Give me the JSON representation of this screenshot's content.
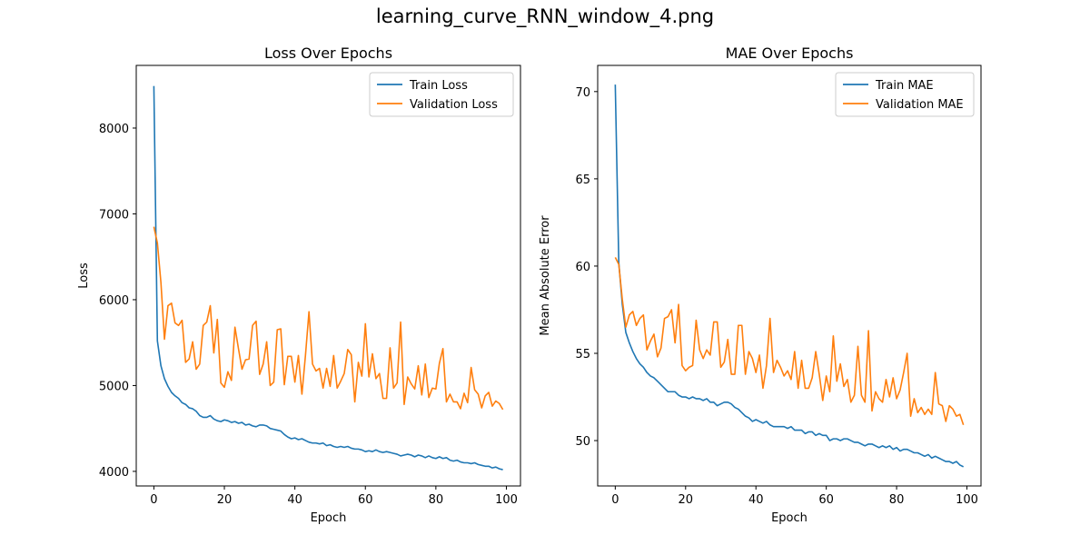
{
  "figure": {
    "title": "learning_curve_RNN_window_4.png"
  },
  "chart_data": [
    {
      "type": "line",
      "title": "Loss Over Epochs",
      "xlabel": "Epoch",
      "ylabel": "Loss",
      "xlim": [
        -5,
        104
      ],
      "ylim": [
        3830,
        8730
      ],
      "xticks": [
        0,
        20,
        40,
        60,
        80,
        100
      ],
      "yticks": [
        4000,
        5000,
        6000,
        7000,
        8000
      ],
      "legend": "top-right",
      "grid": false,
      "x": [
        0,
        1,
        2,
        3,
        4,
        5,
        6,
        7,
        8,
        9,
        10,
        11,
        12,
        13,
        14,
        15,
        16,
        17,
        18,
        19,
        20,
        21,
        22,
        23,
        24,
        25,
        26,
        27,
        28,
        29,
        30,
        31,
        32,
        33,
        34,
        35,
        36,
        37,
        38,
        39,
        40,
        41,
        42,
        43,
        44,
        45,
        46,
        47,
        48,
        49,
        50,
        51,
        52,
        53,
        54,
        55,
        56,
        57,
        58,
        59,
        60,
        61,
        62,
        63,
        64,
        65,
        66,
        67,
        68,
        69,
        70,
        71,
        72,
        73,
        74,
        75,
        76,
        77,
        78,
        79,
        80,
        81,
        82,
        83,
        84,
        85,
        86,
        87,
        88,
        89,
        90,
        91,
        92,
        93,
        94,
        95,
        96,
        97,
        98,
        99
      ],
      "series": [
        {
          "name": "Train Loss",
          "color": "#1f77b4",
          "values": [
            8490,
            5520,
            5230,
            5080,
            4990,
            4920,
            4880,
            4850,
            4800,
            4780,
            4740,
            4730,
            4700,
            4650,
            4630,
            4630,
            4650,
            4610,
            4590,
            4580,
            4600,
            4590,
            4570,
            4580,
            4560,
            4570,
            4540,
            4550,
            4530,
            4520,
            4540,
            4540,
            4530,
            4500,
            4490,
            4480,
            4470,
            4430,
            4400,
            4380,
            4390,
            4370,
            4380,
            4360,
            4340,
            4330,
            4330,
            4320,
            4330,
            4300,
            4310,
            4290,
            4280,
            4290,
            4280,
            4290,
            4270,
            4260,
            4260,
            4250,
            4230,
            4240,
            4230,
            4250,
            4230,
            4220,
            4230,
            4220,
            4210,
            4200,
            4180,
            4190,
            4200,
            4190,
            4170,
            4190,
            4180,
            4160,
            4180,
            4160,
            4150,
            4170,
            4150,
            4160,
            4130,
            4120,
            4130,
            4110,
            4100,
            4100,
            4090,
            4100,
            4080,
            4070,
            4060,
            4060,
            4040,
            4050,
            4030,
            4020
          ]
        },
        {
          "name": "Validation Loss",
          "color": "#ff7f0e",
          "values": [
            6850,
            6660,
            6200,
            5540,
            5930,
            5960,
            5730,
            5700,
            5760,
            5270,
            5310,
            5510,
            5190,
            5250,
            5700,
            5740,
            5930,
            5380,
            5770,
            5030,
            4980,
            5160,
            5060,
            5680,
            5430,
            5190,
            5300,
            5310,
            5700,
            5750,
            5130,
            5250,
            5510,
            5000,
            5040,
            5650,
            5660,
            5010,
            5340,
            5340,
            5040,
            5350,
            4900,
            5350,
            5860,
            5250,
            5170,
            5200,
            4970,
            5200,
            4990,
            5350,
            4970,
            5050,
            5140,
            5420,
            5360,
            4810,
            5270,
            5110,
            5720,
            5100,
            5370,
            5080,
            5140,
            4850,
            4850,
            5440,
            4970,
            5030,
            5740,
            4780,
            5100,
            5020,
            4960,
            5230,
            4890,
            5250,
            4860,
            4970,
            4960,
            5260,
            5430,
            4810,
            4900,
            4810,
            4810,
            4730,
            4910,
            4800,
            5210,
            4950,
            4900,
            4740,
            4880,
            4920,
            4760,
            4820,
            4790,
            4720
          ]
        }
      ]
    },
    {
      "type": "line",
      "title": "MAE Over Epochs",
      "xlabel": "Epoch",
      "ylabel": "Mean Absolute Error",
      "xlim": [
        -5,
        104
      ],
      "ylim": [
        47.4,
        71.5
      ],
      "xticks": [
        0,
        20,
        40,
        60,
        80,
        100
      ],
      "yticks": [
        50,
        55,
        60,
        65,
        70
      ],
      "legend": "top-right",
      "grid": false,
      "x": [
        0,
        1,
        2,
        3,
        4,
        5,
        6,
        7,
        8,
        9,
        10,
        11,
        12,
        13,
        14,
        15,
        16,
        17,
        18,
        19,
        20,
        21,
        22,
        23,
        24,
        25,
        26,
        27,
        28,
        29,
        30,
        31,
        32,
        33,
        34,
        35,
        36,
        37,
        38,
        39,
        40,
        41,
        42,
        43,
        44,
        45,
        46,
        47,
        48,
        49,
        50,
        51,
        52,
        53,
        54,
        55,
        56,
        57,
        58,
        59,
        60,
        61,
        62,
        63,
        64,
        65,
        66,
        67,
        68,
        69,
        70,
        71,
        72,
        73,
        74,
        75,
        76,
        77,
        78,
        79,
        80,
        81,
        82,
        83,
        84,
        85,
        86,
        87,
        88,
        89,
        90,
        91,
        92,
        93,
        94,
        95,
        96,
        97,
        98,
        99
      ],
      "series": [
        {
          "name": "Train MAE",
          "color": "#1f77b4",
          "values": [
            70.4,
            60.2,
            57.8,
            56.2,
            55.6,
            55.1,
            54.7,
            54.4,
            54.2,
            53.9,
            53.7,
            53.6,
            53.4,
            53.2,
            53.0,
            52.8,
            52.8,
            52.8,
            52.6,
            52.5,
            52.5,
            52.4,
            52.5,
            52.4,
            52.4,
            52.3,
            52.4,
            52.2,
            52.2,
            52.0,
            52.1,
            52.2,
            52.2,
            52.1,
            51.9,
            51.8,
            51.6,
            51.4,
            51.3,
            51.1,
            51.2,
            51.1,
            51.0,
            51.1,
            50.9,
            50.8,
            50.8,
            50.8,
            50.8,
            50.7,
            50.8,
            50.6,
            50.6,
            50.6,
            50.4,
            50.5,
            50.5,
            50.3,
            50.4,
            50.3,
            50.3,
            50.0,
            50.1,
            50.1,
            50.0,
            50.1,
            50.1,
            50.0,
            49.9,
            49.9,
            49.8,
            49.7,
            49.8,
            49.8,
            49.7,
            49.6,
            49.7,
            49.6,
            49.7,
            49.5,
            49.6,
            49.4,
            49.5,
            49.5,
            49.4,
            49.3,
            49.3,
            49.2,
            49.1,
            49.2,
            49.0,
            49.1,
            49.0,
            48.9,
            48.8,
            48.8,
            48.7,
            48.8,
            48.6,
            48.5
          ]
        },
        {
          "name": "Validation MAE",
          "color": "#ff7f0e",
          "values": [
            60.5,
            60.1,
            58.1,
            56.5,
            57.2,
            57.4,
            56.6,
            57.0,
            57.2,
            55.2,
            55.7,
            56.1,
            54.8,
            55.3,
            57.0,
            57.1,
            57.5,
            55.6,
            57.8,
            54.3,
            54.0,
            54.2,
            54.3,
            56.9,
            55.2,
            54.7,
            55.2,
            54.9,
            56.8,
            56.8,
            54.2,
            54.5,
            55.8,
            53.8,
            53.8,
            56.6,
            56.6,
            53.8,
            55.1,
            54.7,
            53.9,
            54.9,
            53.0,
            54.3,
            57.0,
            53.9,
            54.6,
            54.2,
            53.7,
            54.0,
            53.5,
            55.1,
            53.0,
            54.6,
            53.0,
            53.0,
            53.6,
            55.1,
            53.8,
            52.3,
            53.7,
            52.8,
            56.0,
            53.4,
            54.4,
            53.1,
            53.5,
            52.2,
            52.6,
            55.4,
            52.6,
            52.2,
            56.3,
            51.7,
            52.8,
            52.4,
            52.2,
            53.5,
            52.5,
            53.6,
            52.4,
            52.9,
            53.9,
            55.0,
            51.4,
            52.4,
            51.6,
            51.9,
            51.5,
            51.8,
            51.5,
            53.9,
            52.1,
            52.0,
            51.1,
            52.0,
            51.8,
            51.4,
            51.5,
            50.9
          ]
        }
      ]
    }
  ]
}
